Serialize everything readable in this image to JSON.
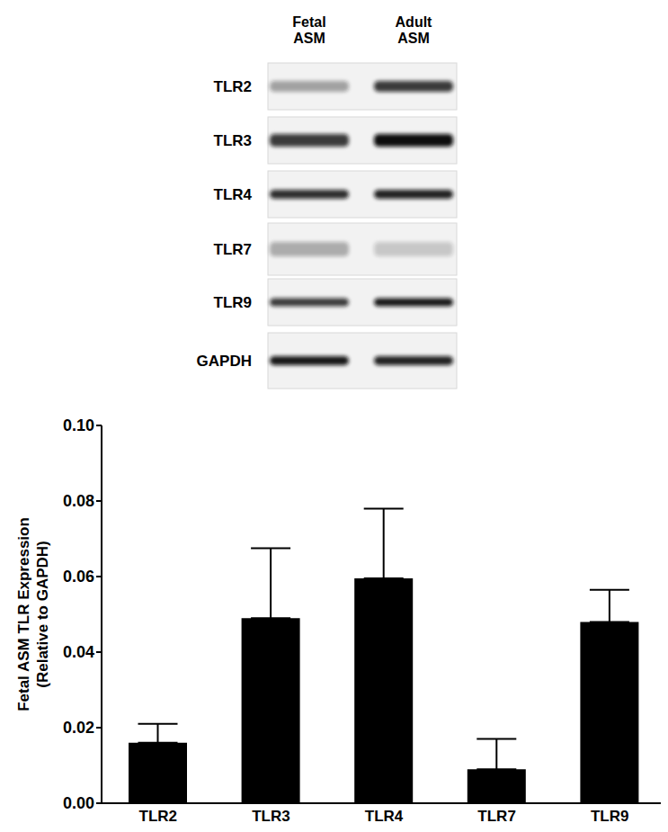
{
  "blot": {
    "lanes": [
      "Fetal ASM",
      "Adult ASM"
    ],
    "rows": [
      "TLR2",
      "TLR3",
      "TLR4",
      "TLR7",
      "TLR9",
      "GAPDH"
    ]
  },
  "chart_data": {
    "type": "bar",
    "categories": [
      "TLR2",
      "TLR3",
      "TLR4",
      "TLR7",
      "TLR9"
    ],
    "values": [
      0.016,
      0.049,
      0.0595,
      0.009,
      0.048
    ],
    "errors": [
      0.005,
      0.0185,
      0.0185,
      0.008,
      0.0085
    ],
    "color": "#000000",
    "y_label": "Fetal ASM TLR Expression\n(Relative to GAPDH)",
    "ylim": [
      0,
      0.1
    ],
    "yticks": [
      {
        "value": 0,
        "label": "0.00"
      },
      {
        "value": 0.02,
        "label": "0.02"
      },
      {
        "value": 0.04,
        "label": "0.04"
      },
      {
        "value": 0.06,
        "label": "0.06"
      },
      {
        "value": 0.08,
        "label": "0.08"
      },
      {
        "value": 0.1,
        "label": "0.10"
      }
    ],
    "grid": false
  }
}
